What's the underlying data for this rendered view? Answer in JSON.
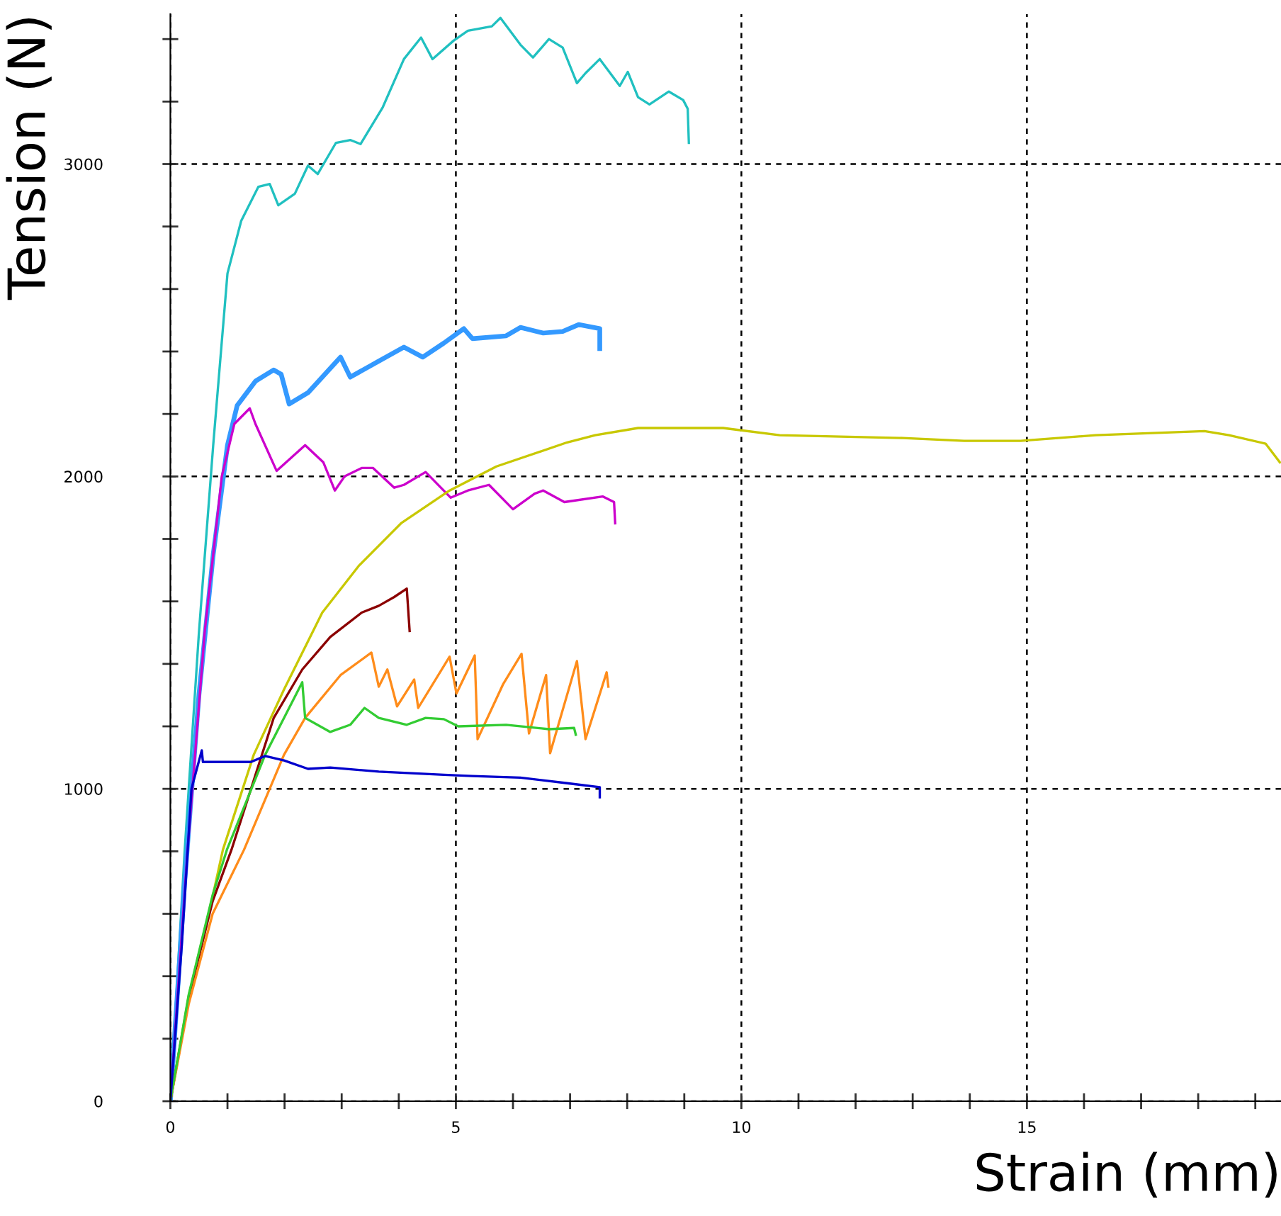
{
  "chart_data": {
    "type": "line",
    "xlabel": "Strain (mm)",
    "ylabel": "Tension (N)",
    "xlim": [
      0,
      19.45
    ],
    "ylim": [
      0,
      3480
    ],
    "xticks": [
      0,
      {
        "value": 1,
        "label": null
      },
      {
        "value": 2,
        "label": null
      },
      {
        "value": 3,
        "label": null
      },
      {
        "value": 4,
        "label": null
      },
      5,
      {
        "value": 6,
        "label": null
      },
      {
        "value": 7,
        "label": null
      },
      {
        "value": 8,
        "label": null
      },
      {
        "value": 9,
        "label": null
      },
      10,
      {
        "value": 11,
        "label": null
      },
      {
        "value": 12,
        "label": null
      },
      {
        "value": 13,
        "label": null
      },
      {
        "value": 14,
        "label": null
      },
      15,
      {
        "value": 16,
        "label": null
      },
      {
        "value": 17,
        "label": null
      },
      {
        "value": 18,
        "label": null
      },
      {
        "value": 19,
        "label": null
      }
    ],
    "yticks": [
      0,
      {
        "value": 200,
        "label": null
      },
      {
        "value": 400,
        "label": null
      },
      {
        "value": 600,
        "label": null
      },
      {
        "value": 800,
        "label": null
      },
      1000,
      {
        "value": 1200,
        "label": null
      },
      {
        "value": 1400,
        "label": null
      },
      {
        "value": 1600,
        "label": null
      },
      {
        "value": 1800,
        "label": null
      },
      2000,
      {
        "value": 2200,
        "label": null
      },
      {
        "value": 2400,
        "label": null
      },
      {
        "value": 2600,
        "label": null
      },
      {
        "value": 2800,
        "label": null
      },
      3000,
      {
        "value": 3200,
        "label": null
      },
      {
        "value": 3400,
        "label": null
      }
    ],
    "grid": true,
    "marker": "none",
    "line_style": "solid",
    "legend": false,
    "series": [
      {
        "color": "#20c0c0",
        "x": [
          0,
          0.25,
          0.5,
          0.75,
          1.0,
          1.24,
          1.54,
          1.74,
          1.89,
          2.18,
          2.41,
          2.58,
          2.9,
          3.15,
          3.33,
          3.72,
          4.09,
          4.39,
          4.59,
          4.96,
          5.21,
          5.63,
          5.78,
          6.13,
          6.35,
          6.63,
          6.87,
          7.12,
          7.27,
          7.52,
          7.87,
          8.01,
          8.19,
          8.39,
          8.73,
          8.98,
          9.06,
          9.08
        ],
        "values": [
          0,
          800,
          1500,
          2100,
          2650,
          2818,
          2927,
          2936,
          2868,
          2905,
          2995,
          2968,
          3068,
          3077,
          3064,
          3182,
          3336,
          3405,
          3336,
          3395,
          3427,
          3441,
          3468,
          3382,
          3341,
          3400,
          3373,
          3259,
          3291,
          3336,
          3250,
          3295,
          3214,
          3191,
          3232,
          3205,
          3177,
          3068
        ]
      },
      {
        "color": "#3399ff",
        "x": [
          0,
          0.25,
          0.5,
          0.75,
          1.0,
          1.17,
          1.49,
          1.81,
          1.94,
          2.08,
          2.41,
          2.98,
          3.15,
          3.55,
          4.09,
          4.42,
          4.79,
          5.14,
          5.29,
          5.88,
          6.13,
          6.53,
          6.87,
          7.15,
          7.52,
          7.52
        ],
        "values": [
          0,
          700,
          1300,
          1750,
          2100,
          2227,
          2305,
          2341,
          2327,
          2232,
          2268,
          2382,
          2318,
          2359,
          2414,
          2382,
          2427,
          2473,
          2441,
          2450,
          2477,
          2459,
          2464,
          2486,
          2473,
          2409
        ]
      },
      {
        "color": "#cc00cc",
        "x": [
          0,
          0.3,
          0.6,
          0.9,
          1.12,
          1.39,
          1.49,
          1.86,
          2.36,
          2.68,
          2.88,
          3.05,
          3.35,
          3.55,
          3.92,
          4.09,
          4.47,
          4.91,
          5.21,
          5.58,
          6.0,
          6.38,
          6.53,
          6.9,
          7.57,
          7.77,
          7.79
        ],
        "values": [
          0,
          800,
          1500,
          2000,
          2168,
          2218,
          2168,
          2018,
          2100,
          2045,
          1955,
          2000,
          2027,
          2027,
          1964,
          1973,
          2014,
          1932,
          1955,
          1973,
          1895,
          1945,
          1955,
          1918,
          1936,
          1918,
          1850
        ]
      },
      {
        "color": "#c8c800",
        "x": [
          0,
          0.32,
          0.74,
          0.92,
          1.46,
          1.99,
          2.66,
          3.3,
          4.04,
          4.89,
          5.71,
          6.95,
          7.44,
          8.19,
          9.68,
          10.67,
          12.83,
          13.9,
          14.89,
          16.2,
          18.11,
          18.54,
          19.18,
          19.43
        ],
        "values": [
          0,
          336,
          655,
          805,
          1109,
          1318,
          1564,
          1714,
          1850,
          1955,
          2032,
          2109,
          2132,
          2155,
          2155,
          2132,
          2123,
          2114,
          2114,
          2132,
          2145,
          2132,
          2105,
          2045
        ]
      },
      {
        "color": "#8b0000",
        "x": [
          0,
          0.32,
          0.74,
          1.07,
          1.81,
          2.31,
          2.8,
          3.35,
          3.65,
          3.92,
          4.14,
          4.19
        ],
        "values": [
          0,
          330,
          640,
          805,
          1227,
          1382,
          1486,
          1564,
          1586,
          1614,
          1641,
          1505
        ]
      },
      {
        "color": "#ff8c1a",
        "x": [
          0,
          0.32,
          0.74,
          1.29,
          1.99,
          2.36,
          2.98,
          3.52,
          3.65,
          3.8,
          3.97,
          4.27,
          4.34,
          4.89,
          5.01,
          5.33,
          5.38,
          5.83,
          6.15,
          6.28,
          6.58,
          6.65,
          7.12,
          7.27,
          7.64,
          7.67
        ],
        "values": [
          0,
          310,
          600,
          805,
          1109,
          1227,
          1364,
          1436,
          1327,
          1382,
          1264,
          1350,
          1259,
          1423,
          1305,
          1427,
          1159,
          1336,
          1432,
          1177,
          1364,
          1114,
          1409,
          1159,
          1373,
          1327
        ]
      },
      {
        "color": "#33cc33",
        "x": [
          0,
          0.32,
          0.74,
          0.99,
          1.66,
          2.31,
          2.36,
          2.8,
          3.15,
          3.4,
          3.65,
          4.14,
          4.47,
          4.79,
          5.04,
          5.88,
          6.63,
          7.07,
          7.1
        ],
        "values": [
          0,
          340,
          660,
          805,
          1109,
          1341,
          1227,
          1182,
          1205,
          1259,
          1227,
          1205,
          1227,
          1223,
          1200,
          1205,
          1191,
          1195,
          1173
        ]
      },
      {
        "color": "#0000cc",
        "x": [
          0,
          0.2,
          0.37,
          0.55,
          0.57,
          0.99,
          1.41,
          1.66,
          1.99,
          2.41,
          2.8,
          3.65,
          4.79,
          5.29,
          6.13,
          6.95,
          7.52,
          7.52
        ],
        "values": [
          0,
          500,
          1000,
          1123,
          1086,
          1086,
          1086,
          1105,
          1091,
          1064,
          1068,
          1055,
          1045,
          1041,
          1036,
          1018,
          1005,
          973
        ]
      }
    ]
  }
}
